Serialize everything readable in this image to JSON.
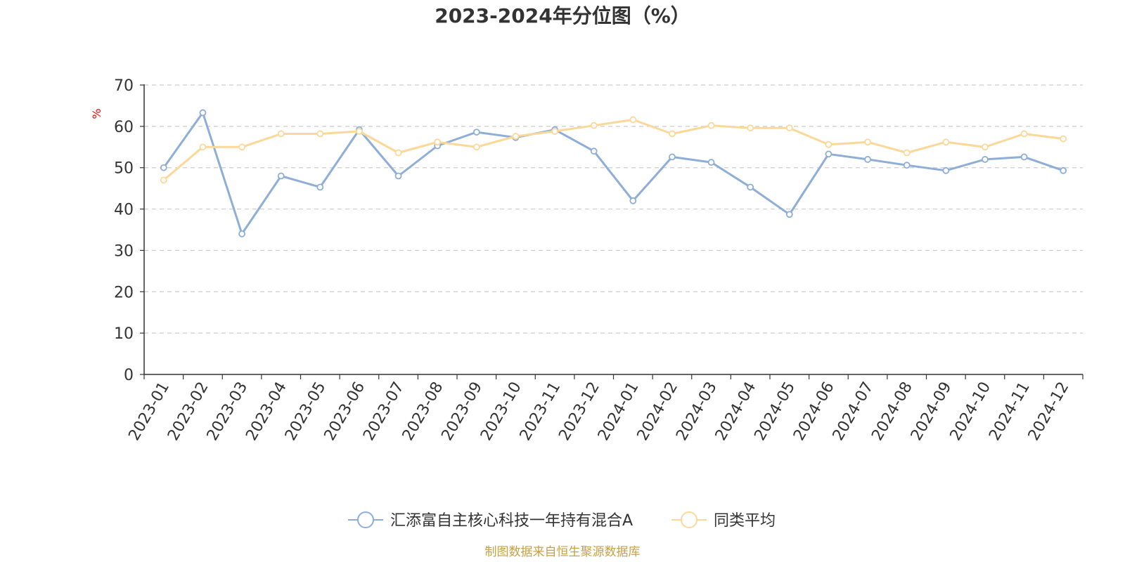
{
  "chart_data": {
    "type": "line",
    "title": "2023-2024年分位图（%）",
    "ylabel": "%",
    "ylim": [
      0,
      70
    ],
    "yticks": [
      0,
      10,
      20,
      30,
      40,
      50,
      60,
      70
    ],
    "grid": true,
    "legend_position": "bottom-center",
    "categories": [
      "2023-01",
      "2023-02",
      "2023-03",
      "2023-04",
      "2023-05",
      "2023-06",
      "2023-07",
      "2023-08",
      "2023-09",
      "2023-10",
      "2023-11",
      "2023-12",
      "2024-01",
      "2024-02",
      "2024-03",
      "2024-04",
      "2024-05",
      "2024-06",
      "2024-07",
      "2024-08",
      "2024-09",
      "2024-10",
      "2024-11",
      "2024-12"
    ],
    "series": [
      {
        "name": "汇添富自主核心科技一年持有混合A",
        "color": "#8eaed8",
        "values": [
          50,
          63.3,
          34,
          48,
          45.3,
          59.2,
          48,
          55.3,
          58.6,
          57.3,
          59.2,
          54,
          42,
          52.6,
          51.3,
          45.3,
          38.7,
          53.3,
          52,
          50.6,
          49.3,
          52,
          52.6,
          49.3
        ]
      },
      {
        "name": "同类平均",
        "color": "#fbd898",
        "values": [
          47,
          55,
          55,
          58.2,
          58.2,
          58.8,
          53.6,
          56.2,
          55,
          57.6,
          58.8,
          60.2,
          61.6,
          58.2,
          60.2,
          59.6,
          59.6,
          55.6,
          56.2,
          53.6,
          56.2,
          55,
          58.2,
          57
        ]
      }
    ]
  },
  "colors": {
    "axis": "#333333",
    "grid": "#cccccc",
    "ylabel": "#ff0000",
    "source": "#c8a044"
  },
  "source_text": "制图数据来自恒生聚源数据库"
}
